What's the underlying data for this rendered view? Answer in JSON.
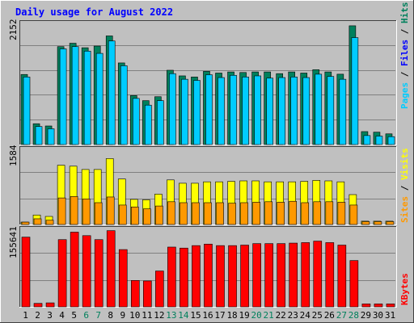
{
  "chart_data": {
    "type": "bar",
    "title": "Daily usage for August 2022",
    "categories": [
      "1",
      "2",
      "3",
      "4",
      "5",
      "6",
      "7",
      "8",
      "9",
      "10",
      "11",
      "12",
      "13",
      "14",
      "15",
      "16",
      "17",
      "18",
      "19",
      "20",
      "21",
      "22",
      "23",
      "24",
      "25",
      "26",
      "27",
      "28",
      "29",
      "30",
      "31"
    ],
    "weekend_days": [
      "6",
      "7",
      "13",
      "14",
      "20",
      "21",
      "27",
      "28"
    ],
    "panels": [
      {
        "name": "hits",
        "ymax_label": "2152",
        "ymax": 2152,
        "series": [
          {
            "name": "Hits",
            "color": "#00805C",
            "values": [
              1245,
              370,
              330,
              1740,
              1800,
              1720,
              1750,
              1930,
              1450,
              870,
              780,
              850,
              1320,
              1220,
              1200,
              1300,
              1270,
              1290,
              1280,
              1290,
              1290,
              1260,
              1290,
              1270,
              1330,
              1290,
              1250,
              2110,
              230,
              220,
              190
            ]
          },
          {
            "name": "Files",
            "color": "#0000FF",
            "values": [
              0,
              0,
              0,
              0,
              0,
              0,
              0,
              0,
              0,
              0,
              0,
              0,
              0,
              0,
              0,
              0,
              0,
              0,
              0,
              0,
              0,
              0,
              0,
              0,
              0,
              0,
              0,
              0,
              0,
              0,
              0
            ]
          },
          {
            "name": "Pages",
            "color": "#00CCFF",
            "values": [
              1200,
              320,
              280,
              1700,
              1740,
              1660,
              1620,
              1840,
              1400,
              820,
              700,
              780,
              1260,
              1160,
              1140,
              1240,
              1190,
              1230,
              1200,
              1220,
              1180,
              1190,
              1200,
              1190,
              1250,
              1210,
              1160,
              1900,
              160,
              150,
              140
            ]
          }
        ]
      },
      {
        "name": "visits",
        "ymax_label": "1584",
        "ymax": 1584,
        "series": [
          {
            "name": "Visits",
            "color": "#FFFF00",
            "values": [
              50,
              200,
              170,
              1250,
              1230,
              1160,
              1160,
              1390,
              960,
              530,
              520,
              640,
              940,
              870,
              870,
              900,
              900,
              910,
              920,
              920,
              900,
              900,
              900,
              910,
              930,
              920,
              900,
              630,
              70,
              70,
              70
            ]
          },
          {
            "name": "Sites",
            "color": "#FF9900",
            "values": [
              50,
              120,
              90,
              560,
              590,
              540,
              460,
              580,
              410,
              370,
              330,
              390,
              480,
              460,
              460,
              460,
              460,
              450,
              460,
              470,
              480,
              470,
              490,
              460,
              480,
              480,
              470,
              410,
              60,
              60,
              60
            ]
          }
        ]
      },
      {
        "name": "kbytes",
        "ymax_label": "155641",
        "ymax": 155641,
        "series": [
          {
            "name": "KBytes",
            "color": "#FF0000",
            "values": [
              140000,
              7000,
              8000,
              135000,
              150000,
              143000,
              135000,
              153000,
              115000,
              53000,
              52000,
              72000,
              120000,
              118000,
              123000,
              126000,
              123000,
              123000,
              124000,
              127000,
              127000,
              127000,
              128000,
              129000,
              132000,
              129000,
              124000,
              93000,
              6000,
              6000,
              6000
            ]
          }
        ]
      }
    ],
    "right_labels": {
      "hits_panel": [
        {
          "text": "Pages",
          "color": "#00CCFF"
        },
        {
          "text": " / ",
          "color": "#000000"
        },
        {
          "text": "Files",
          "color": "#0000FF"
        },
        {
          "text": " / ",
          "color": "#000000"
        },
        {
          "text": "Hits",
          "color": "#00805C"
        }
      ],
      "visits_panel": [
        {
          "text": "Sites",
          "color": "#FF9900"
        },
        {
          "text": " / ",
          "color": "#000000"
        },
        {
          "text": "Visits",
          "color": "#FFFF00"
        }
      ],
      "kbytes_panel": [
        {
          "text": "KBytes",
          "color": "#FF0000"
        }
      ]
    },
    "colors": {
      "background": "#C0C0C0",
      "title": "#0000FF",
      "weekday_label": "#000000",
      "weekend_label": "#00805C",
      "grid": "#808080"
    },
    "grid": true
  }
}
